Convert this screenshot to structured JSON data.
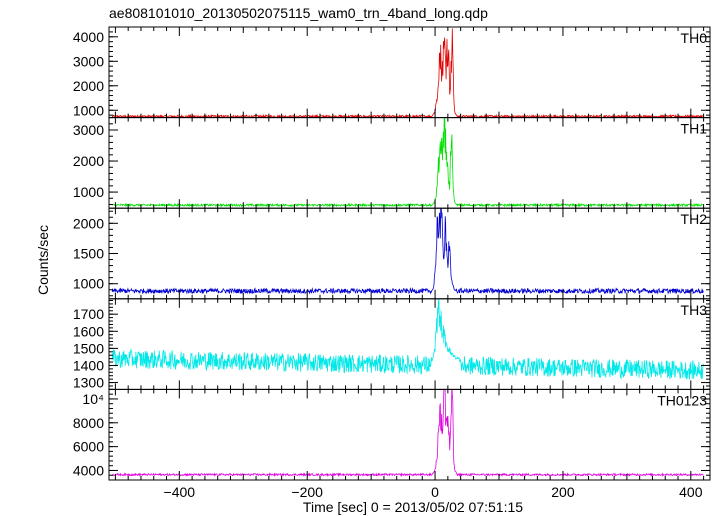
{
  "title": "ae808101010_20130502075115_wam0_trn_4band_long.qdp",
  "chart_data": {
    "type": "line",
    "title": "ae808101010_20130502075115_wam0_trn_4band_long.qdp",
    "xlabel": "Time [sec] 0 = 2013/05/02 07:51:15",
    "ylabel": "Counts/sec",
    "xlim": [
      -510,
      430
    ],
    "x_ticks": [
      -400,
      -200,
      0,
      200,
      400
    ],
    "x_tick_labels": [
      "−400",
      "−200",
      "0",
      "200",
      "400"
    ],
    "grid": false,
    "legend": "none",
    "panels": [
      {
        "name": "TH0",
        "color": "#e00000",
        "ylim": [
          700,
          4400
        ],
        "y_ticks": [
          1000,
          2000,
          3000,
          4000
        ],
        "y_tick_labels": [
          "1000",
          "2000",
          "3000",
          "4000"
        ],
        "baseline": 750,
        "noise": 45,
        "burst": [
          [
            -5,
            750
          ],
          [
            0,
            950
          ],
          [
            3,
            1500
          ],
          [
            5,
            2500
          ],
          [
            7,
            3200
          ],
          [
            9,
            3100
          ],
          [
            11,
            2500
          ],
          [
            13,
            3300
          ],
          [
            15,
            3600
          ],
          [
            17,
            2800
          ],
          [
            19,
            3700
          ],
          [
            21,
            3300
          ],
          [
            23,
            1800
          ],
          [
            25,
            2600
          ],
          [
            27,
            4400
          ],
          [
            29,
            1500
          ],
          [
            31,
            900
          ],
          [
            34,
            770
          ]
        ]
      },
      {
        "name": "TH1",
        "color": "#00e000",
        "ylim": [
          480,
          3400
        ],
        "y_ticks": [
          1000,
          2000,
          3000
        ],
        "y_tick_labels": [
          "1000",
          "2000",
          "3000"
        ],
        "baseline": 580,
        "noise": 35,
        "burst": [
          [
            -5,
            580
          ],
          [
            0,
            700
          ],
          [
            3,
            1100
          ],
          [
            5,
            1700
          ],
          [
            7,
            2300
          ],
          [
            9,
            2700
          ],
          [
            11,
            2300
          ],
          [
            13,
            3000
          ],
          [
            15,
            3200
          ],
          [
            17,
            2600
          ],
          [
            19,
            1800
          ],
          [
            21,
            1400
          ],
          [
            23,
            1200
          ],
          [
            25,
            2800
          ],
          [
            27,
            2200
          ],
          [
            29,
            900
          ],
          [
            31,
            650
          ],
          [
            34,
            590
          ]
        ]
      },
      {
        "name": "TH2",
        "color": "#0000d0",
        "ylim": [
          750,
          2250
        ],
        "y_ticks": [
          1000,
          1500,
          2000
        ],
        "y_tick_labels": [
          "1000",
          "1500",
          "2000"
        ],
        "baseline": 880,
        "noise": 40,
        "burst": [
          [
            -5,
            880
          ],
          [
            -2,
            950
          ],
          [
            0,
            1200
          ],
          [
            2,
            1700
          ],
          [
            4,
            2000
          ],
          [
            6,
            2150
          ],
          [
            8,
            1900
          ],
          [
            10,
            2100
          ],
          [
            12,
            1800
          ],
          [
            14,
            1400
          ],
          [
            16,
            1900
          ],
          [
            18,
            1500
          ],
          [
            20,
            1200
          ],
          [
            22,
            1800
          ],
          [
            24,
            1300
          ],
          [
            27,
            1000
          ],
          [
            30,
            900
          ],
          [
            34,
            880
          ]
        ]
      },
      {
        "name": "TH3",
        "color": "#00e8e8",
        "ylim": [
          1260,
          1790
        ],
        "y_ticks": [
          1300,
          1400,
          1500,
          1600,
          1700
        ],
        "y_tick_labels": [
          "1300",
          "1400",
          "1500",
          "1600",
          "1700"
        ],
        "baseline_start": 1440,
        "baseline_end": 1370,
        "noise": 55,
        "burst": [
          [
            -5,
            1420
          ],
          [
            -2,
            1460
          ],
          [
            0,
            1520
          ],
          [
            2,
            1600
          ],
          [
            4,
            1680
          ],
          [
            6,
            1730
          ],
          [
            8,
            1700
          ],
          [
            10,
            1640
          ],
          [
            12,
            1600
          ],
          [
            15,
            1560
          ],
          [
            20,
            1500
          ],
          [
            25,
            1470
          ],
          [
            30,
            1450
          ],
          [
            40,
            1430
          ]
        ]
      },
      {
        "name": "TH0123",
        "color": "#e000e0",
        "ylim": [
          3200,
          10800
        ],
        "y_ticks": [
          4000,
          6000,
          8000,
          10000
        ],
        "y_tick_labels": [
          "4000",
          "6000",
          "8000",
          "10⁴"
        ],
        "baseline": 3650,
        "noise": 80,
        "burst": [
          [
            -5,
            3650
          ],
          [
            0,
            4000
          ],
          [
            3,
            5200
          ],
          [
            5,
            7000
          ],
          [
            7,
            8500
          ],
          [
            9,
            8200
          ],
          [
            11,
            7500
          ],
          [
            13,
            9500
          ],
          [
            15,
            10800
          ],
          [
            17,
            9000
          ],
          [
            19,
            8500
          ],
          [
            21,
            7500
          ],
          [
            23,
            6000
          ],
          [
            25,
            8500
          ],
          [
            27,
            10800
          ],
          [
            29,
            5000
          ],
          [
            31,
            4000
          ],
          [
            34,
            3700
          ]
        ]
      }
    ]
  }
}
